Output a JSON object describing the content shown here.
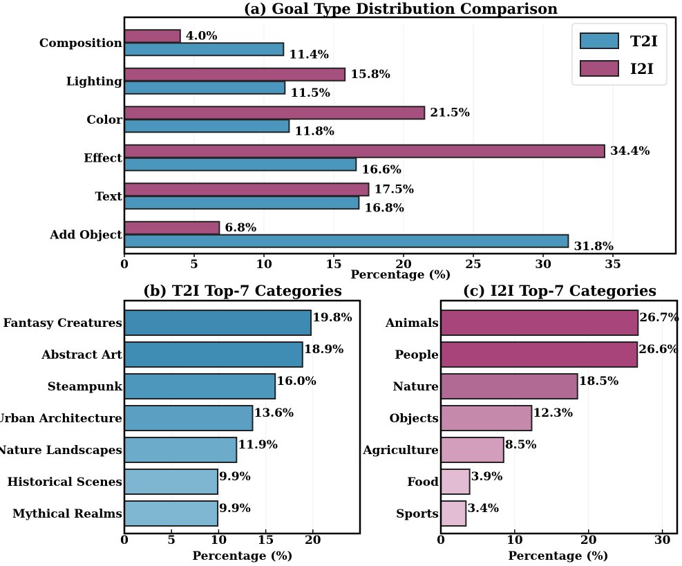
{
  "colors": {
    "t2i": "#4a96bd",
    "i2i": "#a6507e",
    "b_scale": [
      "#3e8ab3",
      "#3f8cb4",
      "#4d97bd",
      "#5ba0c2",
      "#6cabca",
      "#7eb6d2",
      "#7fb7d3"
    ],
    "c_scale": [
      "#a8467b",
      "#a8447a",
      "#b06a94",
      "#c58aab",
      "#d39ebb",
      "#e1bcd2",
      "#e2bdd3"
    ]
  },
  "chart_data": [
    {
      "id": "a",
      "type": "bar",
      "orientation": "horizontal",
      "title": "(a) Goal Type Distribution Comparison",
      "xlabel": "Percentage (%)",
      "ylabel": "",
      "xlim": [
        0,
        39.5
      ],
      "xticks": [
        0,
        5,
        10,
        15,
        20,
        25,
        30,
        35
      ],
      "categories": [
        "Composition",
        "Lighting",
        "Color",
        "Effect",
        "Text",
        "Add Object"
      ],
      "series": [
        {
          "name": "T2I",
          "values": [
            11.4,
            11.5,
            11.8,
            16.6,
            16.8,
            31.8
          ],
          "labels": [
            "11.4%",
            "11.5%",
            "11.8%",
            "16.6%",
            "16.8%",
            "31.8%"
          ]
        },
        {
          "name": "I2I",
          "values": [
            4.0,
            15.8,
            21.5,
            34.4,
            17.5,
            6.8
          ],
          "labels": [
            "4.0%",
            "15.8%",
            "21.5%",
            "34.4%",
            "17.5%",
            "6.8%"
          ]
        }
      ],
      "legend": {
        "position": "top-right",
        "entries": [
          "T2I",
          "I2I"
        ]
      }
    },
    {
      "id": "b",
      "type": "bar",
      "orientation": "horizontal",
      "title": "(b) T2I Top-7 Categories",
      "xlabel": "Percentage (%)",
      "ylabel": "",
      "xlim": [
        0,
        25
      ],
      "xticks": [
        0,
        5,
        10,
        15,
        20
      ],
      "categories": [
        "Fantasy Creatures",
        "Abstract Art",
        "Steampunk",
        "Urban Architecture",
        "Nature Landscapes",
        "Historical Scenes",
        "Mythical Realms"
      ],
      "values": [
        19.8,
        18.9,
        16.0,
        13.6,
        11.9,
        9.9,
        9.9
      ],
      "labels": [
        "19.8%",
        "18.9%",
        "16.0%",
        "13.6%",
        "11.9%",
        "9.9%",
        "9.9%"
      ]
    },
    {
      "id": "c",
      "type": "bar",
      "orientation": "horizontal",
      "title": "(c) I2I Top-7 Categories",
      "xlabel": "Percentage (%)",
      "ylabel": "",
      "xlim": [
        0,
        32
      ],
      "xticks": [
        0,
        10,
        20,
        30
      ],
      "categories": [
        "Animals",
        "People",
        "Nature",
        "Objects",
        "Agriculture",
        "Food",
        "Sports"
      ],
      "values": [
        26.7,
        26.6,
        18.5,
        12.3,
        8.5,
        3.9,
        3.4
      ],
      "labels": [
        "26.7%",
        "26.6%",
        "18.5%",
        "12.3%",
        "8.5%",
        "3.9%",
        "3.4%"
      ]
    }
  ]
}
